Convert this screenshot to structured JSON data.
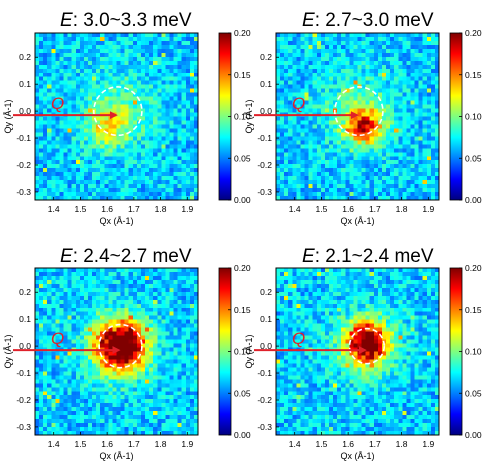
{
  "chart_data": [
    {
      "type": "heatmap",
      "title": "E: 3.0~3.3 meV",
      "title_var": "E",
      "title_range": ": 3.0~3.3 meV",
      "xlabel": "Qx (Å-1)",
      "ylabel": "Qy (Å-1)",
      "x_ticks": [
        1.4,
        1.5,
        1.6,
        1.7,
        1.8,
        1.9
      ],
      "y_ticks": [
        -0.3,
        -0.2,
        -0.1,
        0.0,
        0.1,
        0.2
      ],
      "xlim": [
        1.33,
        1.94
      ],
      "ylim": [
        -0.33,
        0.29
      ],
      "colorbar_ticks": [
        0.0,
        0.05,
        0.1,
        0.15,
        0.2
      ],
      "colorbar_range": [
        0.0,
        0.2
      ],
      "ring_center": [
        1.64,
        0.0
      ],
      "ring_radius": 0.09,
      "spot": {
        "x": 1.6,
        "y": -0.06,
        "amp": 0.045,
        "spread": 0.05
      },
      "arrow_label": "Q"
    },
    {
      "type": "heatmap",
      "title": "E: 2.7~3.0 meV",
      "title_var": "E",
      "title_range": ": 2.7~3.0 meV",
      "xlabel": "Qx (Å-1)",
      "ylabel": "Qy (Å-1)",
      "x_ticks": [
        1.4,
        1.5,
        1.6,
        1.7,
        1.8,
        1.9
      ],
      "y_ticks": [
        -0.3,
        -0.2,
        -0.1,
        0.0,
        0.1,
        0.2
      ],
      "xlim": [
        1.33,
        1.94
      ],
      "ylim": [
        -0.33,
        0.29
      ],
      "colorbar_ticks": [
        0.0,
        0.05,
        0.1,
        0.15,
        0.2
      ],
      "colorbar_range": [
        0.0,
        0.2
      ],
      "ring_center": [
        1.64,
        0.0
      ],
      "ring_radius": 0.09,
      "spot": {
        "x": 1.66,
        "y": -0.06,
        "amp": 0.1,
        "spread": 0.045
      },
      "arrow_label": "Q"
    },
    {
      "type": "heatmap",
      "title": "E: 2.4~2.7 meV",
      "title_var": "E",
      "title_range": ": 2.4~2.7 meV",
      "xlabel": "Qx (Å-1)",
      "ylabel": "Qy (Å-1)",
      "x_ticks": [
        1.4,
        1.5,
        1.6,
        1.7,
        1.8,
        1.9
      ],
      "y_ticks": [
        -0.3,
        -0.2,
        -0.1,
        0.0,
        0.1,
        0.2
      ],
      "xlim": [
        1.33,
        1.94
      ],
      "ylim": [
        -0.33,
        0.29
      ],
      "colorbar_ticks": [
        0.0,
        0.05,
        0.1,
        0.15,
        0.2
      ],
      "colorbar_range": [
        0.0,
        0.2
      ],
      "ring_center": [
        1.65,
        0.0
      ],
      "ring_radius": 0.08,
      "spot": {
        "x": 1.65,
        "y": 0.0,
        "amp": 0.16,
        "spread": 0.06
      },
      "arrow_label": "Q"
    },
    {
      "type": "heatmap",
      "title": "E: 2.1~2.4 meV",
      "title_var": "E",
      "title_range": ": 2.1~2.4 meV",
      "xlabel": "Qx (Å-1)",
      "ylabel": "Qy (Å-1)",
      "x_ticks": [
        1.4,
        1.5,
        1.6,
        1.7,
        1.8,
        1.9
      ],
      "y_ticks": [
        -0.3,
        -0.2,
        -0.1,
        0.0,
        0.1,
        0.2
      ],
      "xlim": [
        1.33,
        1.94
      ],
      "ylim": [
        -0.33,
        0.29
      ],
      "colorbar_ticks": [
        0.0,
        0.05,
        0.1,
        0.15,
        0.2
      ],
      "colorbar_range": [
        0.0,
        0.2
      ],
      "ring_center": [
        1.67,
        0.0
      ],
      "ring_radius": 0.065,
      "spot": {
        "x": 1.67,
        "y": 0.01,
        "amp": 0.14,
        "spread": 0.05
      },
      "arrow_label": "Q"
    }
  ],
  "colors": {
    "arrow": "#e0202a",
    "ring": "#ffffff",
    "colormap": [
      "#00007f",
      "#0000ff",
      "#007fff",
      "#00ffff",
      "#7fff7f",
      "#ffff00",
      "#ff7f00",
      "#ff0000",
      "#7f0000"
    ]
  }
}
